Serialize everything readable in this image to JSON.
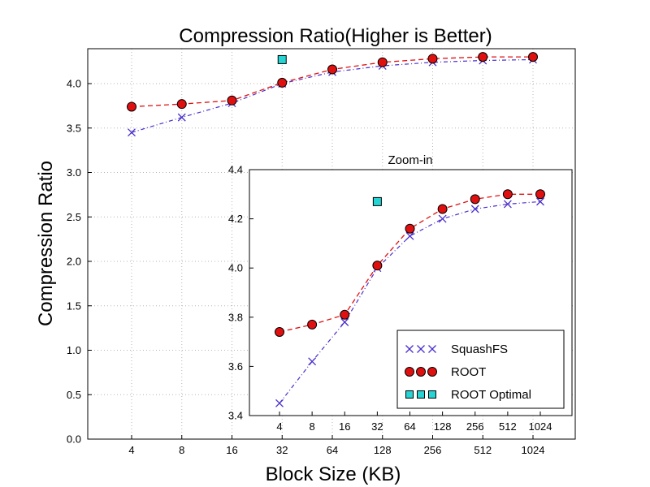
{
  "chart_data": [
    {
      "type": "line",
      "title": "Compression Ratio(Higher is Better)",
      "xlabel": "Block Size (KB)",
      "ylabel": "Compression Ratio",
      "categories": [
        "4",
        "8",
        "16",
        "32",
        "64",
        "128",
        "256",
        "512",
        "1024"
      ],
      "ylim": [
        0.0,
        4.35
      ],
      "yticks": [
        "0.0",
        "0.5",
        "1.0",
        "1.5",
        "2.0",
        "2.5",
        "3.0",
        "3.5",
        "4.0"
      ],
      "grid": true,
      "series": [
        {
          "name": "SquashFS",
          "marker": "x",
          "line": "dash-dot",
          "color": "#4b2fcc",
          "values": [
            3.45,
            3.62,
            3.78,
            4.0,
            4.13,
            4.2,
            4.24,
            4.26,
            4.27
          ]
        },
        {
          "name": "ROOT",
          "marker": "circle",
          "line": "dashed",
          "color": "#e01010",
          "values": [
            3.74,
            3.77,
            3.81,
            4.01,
            4.16,
            4.24,
            4.28,
            4.3,
            4.3
          ]
        },
        {
          "name": "ROOT Optimal",
          "marker": "square",
          "line": "none",
          "color": "#26d4d4",
          "points": [
            {
              "x": "32",
              "y": 4.27
            }
          ]
        }
      ]
    },
    {
      "type": "line",
      "title": "Zoom-in",
      "categories": [
        "4",
        "8",
        "16",
        "32",
        "64",
        "128",
        "256",
        "512",
        "1024"
      ],
      "ylim": [
        3.4,
        4.4
      ],
      "yticks": [
        "3.4",
        "3.6",
        "3.8",
        "4.0",
        "4.2",
        "4.4"
      ],
      "grid": false,
      "legend_position": "lower-right",
      "legend": [
        "SquashFS",
        "ROOT",
        "ROOT Optimal"
      ]
    }
  ]
}
